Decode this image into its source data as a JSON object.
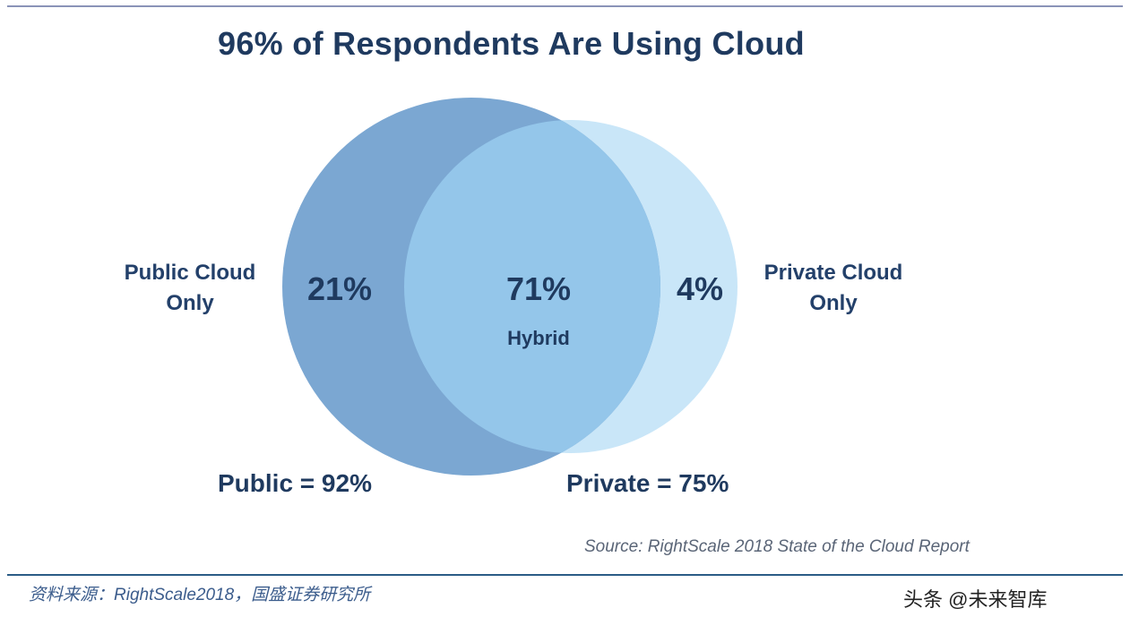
{
  "title": "96% of Respondents Are Using Cloud",
  "chart_data": {
    "type": "venn",
    "sets": [
      {
        "name": "Public",
        "total_label": "Public = 92%",
        "total_value": 92,
        "only_label": "Public Cloud Only",
        "only_value": "21%",
        "color": "#7ba7d2"
      },
      {
        "name": "Private",
        "total_label": "Private = 75%",
        "total_value": 75,
        "only_label": "Private Cloud Only",
        "only_value": "4%",
        "color": "#c9e6f8"
      }
    ],
    "intersection": {
      "label": "Hybrid",
      "value": "71%",
      "color": "#94c6ea"
    }
  },
  "labels": {
    "public_only_line1": "Public Cloud",
    "public_only_line2": "Only",
    "private_only_line1": "Private Cloud",
    "private_only_line2": "Only"
  },
  "source": "Source: RightScale 2018 State of the Cloud Report",
  "footnote": "资料来源：RightScale2018，国盛证券研究所",
  "watermark": "头条 @未来智库"
}
